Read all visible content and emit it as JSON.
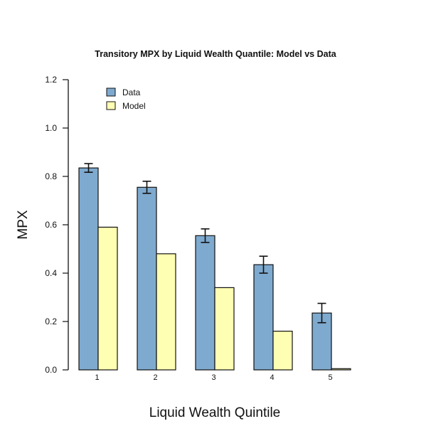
{
  "chart_data": {
    "type": "bar",
    "title": "Transitory MPX by Liquid Wealth Quantile: Model vs Data",
    "xlabel": "Liquid Wealth Quintile",
    "ylabel": "MPX",
    "categories": [
      "1",
      "2",
      "3",
      "4",
      "5"
    ],
    "ylim": [
      0,
      1.2
    ],
    "yticks": [
      "0.0",
      "0.2",
      "0.4",
      "0.6",
      "0.8",
      "1.0",
      "1.2"
    ],
    "grid": false,
    "legend_position": "top-left",
    "series": [
      {
        "name": "Data",
        "color": "#7faacf",
        "values": [
          0.835,
          0.755,
          0.555,
          0.435,
          0.235
        ],
        "error": [
          0.018,
          0.025,
          0.028,
          0.035,
          0.04
        ]
      },
      {
        "name": "Model",
        "color": "#ffffb3",
        "values": [
          0.59,
          0.48,
          0.34,
          0.16,
          0.005
        ]
      }
    ]
  }
}
